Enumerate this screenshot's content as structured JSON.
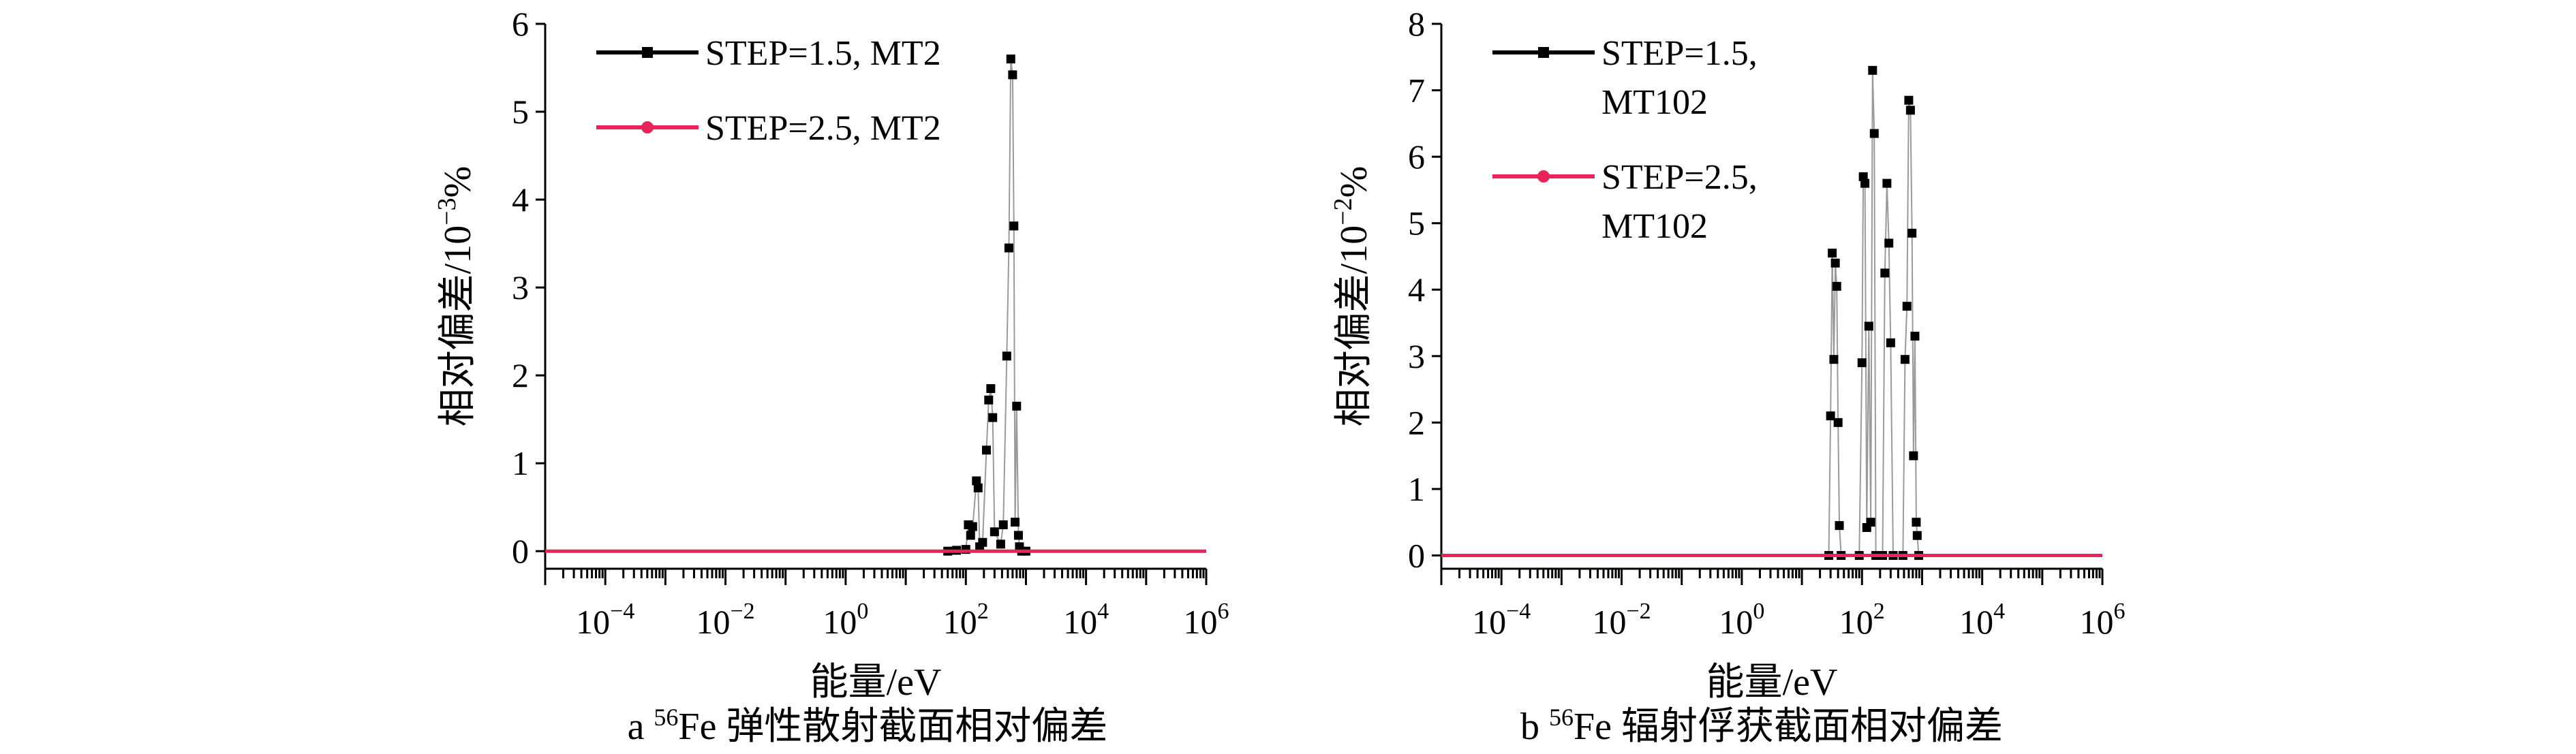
{
  "colors": {
    "series_step15": "#000000",
    "series_step25": "#e8245a",
    "axis": "#000000",
    "data_line": "#9a9a9a"
  },
  "chart_data": [
    {
      "type": "line",
      "panel": "a",
      "caption": {
        "letter": "a",
        "isotope_mass": "56",
        "text": "Fe 弹性散射截面相对偏差"
      },
      "xlabel": "能量/eV",
      "ylabel": "相对偏差/10",
      "ylabel_exponent": "−3",
      "ylabel_unit": "%",
      "xscale": "log",
      "xlim": [
        1e-05,
        1000000.0
      ],
      "ylim": [
        -0.2,
        6
      ],
      "xticks": [
        {
          "base": "10",
          "exp": "−4",
          "value": 0.0001
        },
        {
          "base": "10",
          "exp": "−2",
          "value": 0.01
        },
        {
          "base": "10",
          "exp": "0",
          "value": 1
        },
        {
          "base": "10",
          "exp": "2",
          "value": 100
        },
        {
          "base": "10",
          "exp": "4",
          "value": 10000
        },
        {
          "base": "10",
          "exp": "6",
          "value": 1000000
        }
      ],
      "yticks": [
        "0",
        "1",
        "2",
        "3",
        "4",
        "5",
        "6"
      ],
      "legend_position": "top-left",
      "series": [
        {
          "name": "STEP=1.5, MT2",
          "name_lines": [
            "STEP=1.5, MT2"
          ],
          "color": "#000000",
          "marker": "square",
          "points": [
            [
              50,
              0.0
            ],
            [
              70,
              0.01
            ],
            [
              100,
              0.02
            ],
            [
              110,
              0.3
            ],
            [
              120,
              0.18
            ],
            [
              130,
              0.28
            ],
            [
              150,
              0.8
            ],
            [
              160,
              0.72
            ],
            [
              170,
              0.05
            ],
            [
              190,
              0.1
            ],
            [
              220,
              1.15
            ],
            [
              240,
              1.72
            ],
            [
              260,
              1.85
            ],
            [
              280,
              1.52
            ],
            [
              300,
              0.22
            ],
            [
              380,
              0.08
            ],
            [
              420,
              0.3
            ],
            [
              480,
              2.22
            ],
            [
              520,
              3.45
            ],
            [
              560,
              5.6
            ],
            [
              600,
              5.42
            ],
            [
              630,
              3.7
            ],
            [
              660,
              0.33
            ],
            [
              700,
              1.65
            ],
            [
              750,
              0.18
            ],
            [
              780,
              0.05
            ],
            [
              850,
              0.0
            ],
            [
              1000,
              0.0
            ]
          ]
        },
        {
          "name": "STEP=2.5, MT2",
          "name_lines": [
            "STEP=2.5, MT2"
          ],
          "color": "#e8245a",
          "marker": "circle",
          "points": [
            [
              1e-05,
              0.0
            ],
            [
              1000000.0,
              0.0
            ]
          ]
        }
      ]
    },
    {
      "type": "line",
      "panel": "b",
      "caption": {
        "letter": "b",
        "isotope_mass": "56",
        "text": "Fe 辐射俘获截面相对偏差"
      },
      "xlabel": "能量/eV",
      "ylabel": "相对偏差/10",
      "ylabel_exponent": "−2",
      "ylabel_unit": "%",
      "xscale": "log",
      "xlim": [
        1e-05,
        1000000.0
      ],
      "ylim": [
        -0.2,
        8
      ],
      "xticks": [
        {
          "base": "10",
          "exp": "−4",
          "value": 0.0001
        },
        {
          "base": "10",
          "exp": "−2",
          "value": 0.01
        },
        {
          "base": "10",
          "exp": "0",
          "value": 1
        },
        {
          "base": "10",
          "exp": "2",
          "value": 100
        },
        {
          "base": "10",
          "exp": "4",
          "value": 10000
        },
        {
          "base": "10",
          "exp": "6",
          "value": 1000000
        }
      ],
      "yticks": [
        "0",
        "1",
        "2",
        "3",
        "4",
        "5",
        "6",
        "7",
        "8"
      ],
      "legend_position": "top-left",
      "series": [
        {
          "name": "STEP=1.5, MT102",
          "name_lines": [
            "STEP=1.5,",
            "MT102"
          ],
          "color": "#000000",
          "marker": "square",
          "points": [
            [
              28,
              0.0
            ],
            [
              30,
              2.1
            ],
            [
              32,
              4.55
            ],
            [
              34,
              2.95
            ],
            [
              36,
              4.4
            ],
            [
              38,
              4.05
            ],
            [
              40,
              2.0
            ],
            [
              42,
              0.45
            ],
            [
              45,
              0.0
            ],
            [
              90,
              0.0
            ],
            [
              100,
              2.9
            ],
            [
              105,
              5.7
            ],
            [
              112,
              5.6
            ],
            [
              120,
              0.42
            ],
            [
              130,
              3.45
            ],
            [
              140,
              0.5
            ],
            [
              150,
              7.3
            ],
            [
              160,
              6.35
            ],
            [
              170,
              0.0
            ],
            [
              220,
              0.0
            ],
            [
              240,
              4.25
            ],
            [
              260,
              5.6
            ],
            [
              280,
              4.7
            ],
            [
              300,
              3.2
            ],
            [
              330,
              0.0
            ],
            [
              480,
              0.0
            ],
            [
              520,
              2.95
            ],
            [
              560,
              3.75
            ],
            [
              600,
              6.85
            ],
            [
              640,
              6.7
            ],
            [
              680,
              4.85
            ],
            [
              720,
              1.5
            ],
            [
              760,
              3.3
            ],
            [
              800,
              0.5
            ],
            [
              830,
              0.3
            ],
            [
              880,
              0.0
            ]
          ]
        },
        {
          "name": "STEP=2.5, MT102",
          "name_lines": [
            "STEP=2.5,",
            "MT102"
          ],
          "color": "#e8245a",
          "marker": "circle",
          "points": [
            [
              1e-05,
              0.0
            ],
            [
              1000000.0,
              0.0
            ]
          ]
        }
      ]
    }
  ]
}
